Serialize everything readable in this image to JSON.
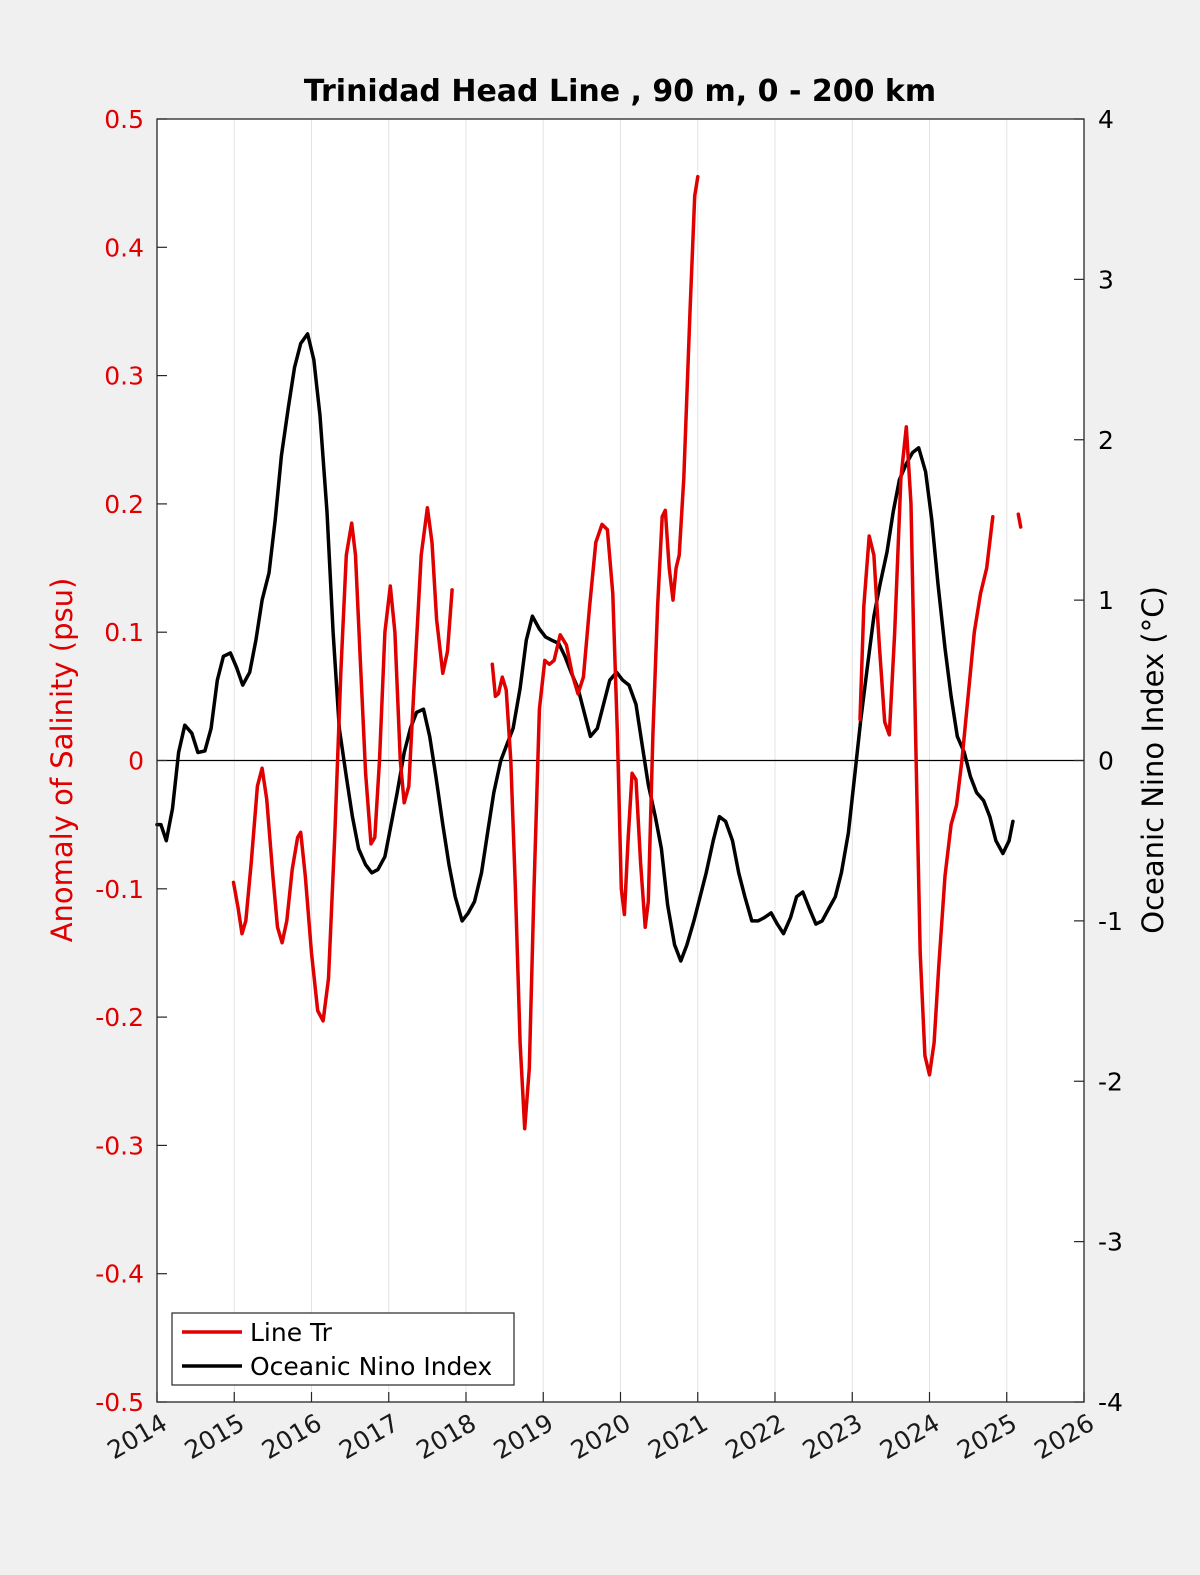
{
  "chart_data": {
    "type": "line",
    "title": "Trinidad Head Line , 90 m, 0 - 200 km",
    "ylabel_left": "Anomaly of Salinity (psu)",
    "ylabel_right": "Oceanic Nino Index (°C)",
    "xlim": [
      2014,
      2026
    ],
    "ylim_left": [
      -0.5,
      0.5
    ],
    "ylim_right": [
      -4,
      4
    ],
    "x_ticks": [
      2014,
      2015,
      2016,
      2017,
      2018,
      2019,
      2020,
      2021,
      2022,
      2023,
      2024,
      2025,
      2026
    ],
    "x_tick_labels": [
      "2014",
      "2015",
      "2016",
      "2017",
      "2018",
      "2019",
      "2020",
      "2021",
      "2022",
      "2023",
      "2024",
      "2025",
      "2026"
    ],
    "y_ticks_left": [
      -0.5,
      -0.4,
      -0.3,
      -0.2,
      -0.1,
      0,
      0.1,
      0.2,
      0.3,
      0.4,
      0.5
    ],
    "y_tick_labels_left": [
      "-0.5",
      "-0.4",
      "-0.3",
      "-0.2",
      "-0.1",
      "0",
      "0.1",
      "0.2",
      "0.3",
      "0.4",
      "0.5"
    ],
    "y_ticks_right": [
      -4,
      -3,
      -2,
      -1,
      0,
      1,
      2,
      3,
      4
    ],
    "y_tick_labels_right": [
      "-4",
      "-3",
      "-2",
      "-1",
      "0",
      "1",
      "2",
      "3",
      "4"
    ],
    "grid": "vertical",
    "zero_line": true,
    "legend_position": "bottom-left",
    "colors": {
      "salinity": "#e00000",
      "oni": "#000000",
      "plot_bg": "#ffffff",
      "figure_bg": "#f0f0f0"
    },
    "series": [
      {
        "name": "Line Tr",
        "axis": "left",
        "color": "#e00000",
        "segments": [
          [
            [
              2014.99,
              -0.095
            ],
            [
              2015.05,
              -0.115
            ],
            [
              2015.1,
              -0.135
            ],
            [
              2015.15,
              -0.125
            ],
            [
              2015.22,
              -0.08
            ],
            [
              2015.3,
              -0.02
            ],
            [
              2015.36,
              -0.006
            ],
            [
              2015.42,
              -0.03
            ],
            [
              2015.5,
              -0.09
            ],
            [
              2015.56,
              -0.13
            ],
            [
              2015.62,
              -0.142
            ],
            [
              2015.68,
              -0.125
            ],
            [
              2015.75,
              -0.085
            ],
            [
              2015.82,
              -0.06
            ],
            [
              2015.86,
              -0.056
            ],
            [
              2015.92,
              -0.09
            ],
            [
              2016.0,
              -0.15
            ],
            [
              2016.08,
              -0.195
            ],
            [
              2016.15,
              -0.203
            ],
            [
              2016.22,
              -0.17
            ],
            [
              2016.3,
              -0.06
            ],
            [
              2016.38,
              0.07
            ],
            [
              2016.45,
              0.16
            ],
            [
              2016.52,
              0.185
            ],
            [
              2016.57,
              0.16
            ],
            [
              2016.63,
              0.08
            ],
            [
              2016.7,
              -0.01
            ],
            [
              2016.77,
              -0.065
            ],
            [
              2016.82,
              -0.06
            ],
            [
              2016.88,
              0.0
            ],
            [
              2016.95,
              0.1
            ],
            [
              2017.02,
              0.136
            ],
            [
              2017.08,
              0.1
            ],
            [
              2017.15,
              0.0
            ],
            [
              2017.2,
              -0.033
            ],
            [
              2017.26,
              -0.02
            ],
            [
              2017.33,
              0.06
            ],
            [
              2017.42,
              0.16
            ],
            [
              2017.5,
              0.197
            ],
            [
              2017.56,
              0.17
            ],
            [
              2017.62,
              0.11
            ],
            [
              2017.7,
              0.068
            ],
            [
              2017.76,
              0.085
            ],
            [
              2017.82,
              0.133
            ]
          ],
          [
            [
              2018.34,
              0.075
            ],
            [
              2018.38,
              0.05
            ],
            [
              2018.42,
              0.052
            ],
            [
              2018.47,
              0.065
            ],
            [
              2018.52,
              0.055
            ],
            [
              2018.58,
              0.0
            ],
            [
              2018.64,
              -0.1
            ],
            [
              2018.7,
              -0.22
            ],
            [
              2018.76,
              -0.287
            ],
            [
              2018.82,
              -0.24
            ],
            [
              2018.88,
              -0.1
            ],
            [
              2018.95,
              0.04
            ],
            [
              2019.02,
              0.078
            ],
            [
              2019.08,
              0.075
            ],
            [
              2019.14,
              0.078
            ],
            [
              2019.22,
              0.098
            ],
            [
              2019.3,
              0.09
            ],
            [
              2019.38,
              0.066
            ],
            [
              2019.45,
              0.052
            ],
            [
              2019.52,
              0.065
            ],
            [
              2019.6,
              0.12
            ],
            [
              2019.68,
              0.17
            ],
            [
              2019.76,
              0.184
            ],
            [
              2019.83,
              0.18
            ],
            [
              2019.9,
              0.13
            ],
            [
              2019.96,
              0.02
            ],
            [
              2020.01,
              -0.1
            ],
            [
              2020.05,
              -0.12
            ],
            [
              2020.1,
              -0.06
            ],
            [
              2020.15,
              -0.01
            ],
            [
              2020.2,
              -0.015
            ],
            [
              2020.26,
              -0.08
            ],
            [
              2020.32,
              -0.13
            ],
            [
              2020.36,
              -0.11
            ],
            [
              2020.42,
              0.02
            ],
            [
              2020.48,
              0.12
            ],
            [
              2020.54,
              0.19
            ],
            [
              2020.58,
              0.195
            ],
            [
              2020.63,
              0.15
            ],
            [
              2020.68,
              0.125
            ],
            [
              2020.72,
              0.15
            ],
            [
              2020.76,
              0.16
            ],
            [
              2020.82,
              0.22
            ],
            [
              2020.9,
              0.35
            ],
            [
              2020.96,
              0.44
            ],
            [
              2021.0,
              0.455
            ]
          ],
          [
            [
              2023.1,
              0.032
            ],
            [
              2023.15,
              0.12
            ],
            [
              2023.22,
              0.175
            ],
            [
              2023.28,
              0.16
            ],
            [
              2023.35,
              0.09
            ],
            [
              2023.42,
              0.03
            ],
            [
              2023.48,
              0.02
            ],
            [
              2023.55,
              0.1
            ],
            [
              2023.63,
              0.22
            ],
            [
              2023.7,
              0.26
            ],
            [
              2023.76,
              0.2
            ],
            [
              2023.82,
              0.02
            ],
            [
              2023.88,
              -0.15
            ],
            [
              2023.94,
              -0.23
            ],
            [
              2024.0,
              -0.245
            ],
            [
              2024.06,
              -0.22
            ],
            [
              2024.12,
              -0.16
            ],
            [
              2024.2,
              -0.09
            ],
            [
              2024.28,
              -0.05
            ],
            [
              2024.35,
              -0.035
            ],
            [
              2024.42,
              0.0
            ],
            [
              2024.5,
              0.05
            ],
            [
              2024.58,
              0.1
            ],
            [
              2024.66,
              0.13
            ],
            [
              2024.74,
              0.15
            ],
            [
              2024.82,
              0.19
            ]
          ],
          [
            [
              2025.15,
              0.192
            ],
            [
              2025.18,
              0.182
            ]
          ]
        ]
      },
      {
        "name": "Oceanic Nino Index",
        "axis": "right",
        "color": "#000000",
        "points": [
          [
            2014.0,
            -0.4
          ],
          [
            2014.05,
            -0.4
          ],
          [
            2014.12,
            -0.5
          ],
          [
            2014.2,
            -0.3
          ],
          [
            2014.28,
            0.05
          ],
          [
            2014.36,
            0.22
          ],
          [
            2014.45,
            0.17
          ],
          [
            2014.53,
            0.05
          ],
          [
            2014.62,
            0.06
          ],
          [
            2014.7,
            0.2
          ],
          [
            2014.78,
            0.5
          ],
          [
            2014.86,
            0.65
          ],
          [
            2014.95,
            0.67
          ],
          [
            2015.03,
            0.58
          ],
          [
            2015.11,
            0.47
          ],
          [
            2015.2,
            0.55
          ],
          [
            2015.28,
            0.75
          ],
          [
            2015.36,
            1.0
          ],
          [
            2015.45,
            1.17
          ],
          [
            2015.53,
            1.5
          ],
          [
            2015.61,
            1.9
          ],
          [
            2015.7,
            2.2
          ],
          [
            2015.78,
            2.45
          ],
          [
            2015.86,
            2.6
          ],
          [
            2015.95,
            2.66
          ],
          [
            2016.03,
            2.5
          ],
          [
            2016.11,
            2.15
          ],
          [
            2016.2,
            1.55
          ],
          [
            2016.28,
            0.8
          ],
          [
            2016.36,
            0.2
          ],
          [
            2016.45,
            -0.1
          ],
          [
            2016.53,
            -0.35
          ],
          [
            2016.61,
            -0.55
          ],
          [
            2016.7,
            -0.65
          ],
          [
            2016.78,
            -0.7
          ],
          [
            2016.86,
            -0.68
          ],
          [
            2016.95,
            -0.6
          ],
          [
            2017.03,
            -0.4
          ],
          [
            2017.11,
            -0.2
          ],
          [
            2017.2,
            0.05
          ],
          [
            2017.28,
            0.2
          ],
          [
            2017.36,
            0.3
          ],
          [
            2017.45,
            0.32
          ],
          [
            2017.53,
            0.15
          ],
          [
            2017.61,
            -0.1
          ],
          [
            2017.7,
            -0.4
          ],
          [
            2017.78,
            -0.65
          ],
          [
            2017.86,
            -0.85
          ],
          [
            2017.95,
            -1.0
          ],
          [
            2018.03,
            -0.95
          ],
          [
            2018.11,
            -0.88
          ],
          [
            2018.2,
            -0.7
          ],
          [
            2018.28,
            -0.45
          ],
          [
            2018.36,
            -0.2
          ],
          [
            2018.45,
            0.0
          ],
          [
            2018.53,
            0.1
          ],
          [
            2018.61,
            0.2
          ],
          [
            2018.7,
            0.45
          ],
          [
            2018.78,
            0.75
          ],
          [
            2018.86,
            0.9
          ],
          [
            2018.95,
            0.82
          ],
          [
            2019.03,
            0.77
          ],
          [
            2019.11,
            0.75
          ],
          [
            2019.2,
            0.73
          ],
          [
            2019.28,
            0.65
          ],
          [
            2019.36,
            0.55
          ],
          [
            2019.45,
            0.45
          ],
          [
            2019.53,
            0.3
          ],
          [
            2019.61,
            0.15
          ],
          [
            2019.7,
            0.2
          ],
          [
            2019.78,
            0.35
          ],
          [
            2019.86,
            0.5
          ],
          [
            2019.95,
            0.55
          ],
          [
            2020.03,
            0.5
          ],
          [
            2020.11,
            0.47
          ],
          [
            2020.2,
            0.35
          ],
          [
            2020.28,
            0.1
          ],
          [
            2020.36,
            -0.15
          ],
          [
            2020.45,
            -0.35
          ],
          [
            2020.53,
            -0.55
          ],
          [
            2020.61,
            -0.9
          ],
          [
            2020.7,
            -1.15
          ],
          [
            2020.78,
            -1.25
          ],
          [
            2020.86,
            -1.15
          ],
          [
            2020.95,
            -1.0
          ],
          [
            2021.03,
            -0.85
          ],
          [
            2021.11,
            -0.7
          ],
          [
            2021.2,
            -0.5
          ],
          [
            2021.28,
            -0.35
          ],
          [
            2021.36,
            -0.38
          ],
          [
            2021.45,
            -0.5
          ],
          [
            2021.53,
            -0.7
          ],
          [
            2021.61,
            -0.85
          ],
          [
            2021.7,
            -1.0
          ],
          [
            2021.78,
            -1.0
          ],
          [
            2021.86,
            -0.98
          ],
          [
            2021.95,
            -0.95
          ],
          [
            2022.03,
            -1.02
          ],
          [
            2022.11,
            -1.08
          ],
          [
            2022.2,
            -0.98
          ],
          [
            2022.28,
            -0.85
          ],
          [
            2022.36,
            -0.82
          ],
          [
            2022.45,
            -0.93
          ],
          [
            2022.53,
            -1.02
          ],
          [
            2022.61,
            -1.0
          ],
          [
            2022.7,
            -0.92
          ],
          [
            2022.78,
            -0.85
          ],
          [
            2022.86,
            -0.7
          ],
          [
            2022.95,
            -0.45
          ],
          [
            2023.03,
            -0.1
          ],
          [
            2023.11,
            0.25
          ],
          [
            2023.2,
            0.6
          ],
          [
            2023.28,
            0.9
          ],
          [
            2023.36,
            1.1
          ],
          [
            2023.45,
            1.3
          ],
          [
            2023.53,
            1.55
          ],
          [
            2023.61,
            1.75
          ],
          [
            2023.7,
            1.85
          ],
          [
            2023.78,
            1.92
          ],
          [
            2023.86,
            1.95
          ],
          [
            2023.95,
            1.8
          ],
          [
            2024.03,
            1.5
          ],
          [
            2024.11,
            1.1
          ],
          [
            2024.2,
            0.7
          ],
          [
            2024.28,
            0.4
          ],
          [
            2024.36,
            0.15
          ],
          [
            2024.45,
            0.05
          ],
          [
            2024.53,
            -0.1
          ],
          [
            2024.61,
            -0.2
          ],
          [
            2024.7,
            -0.25
          ],
          [
            2024.78,
            -0.35
          ],
          [
            2024.86,
            -0.5
          ],
          [
            2024.95,
            -0.58
          ],
          [
            2025.03,
            -0.5
          ],
          [
            2025.08,
            -0.38
          ]
        ]
      }
    ]
  }
}
